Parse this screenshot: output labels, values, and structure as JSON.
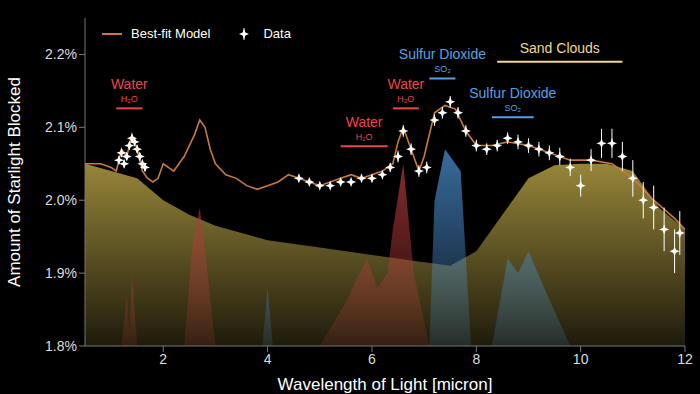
{
  "chart_data": {
    "type": "line",
    "x_label": "Wavelength of Light [micron]",
    "y_label": "Amount of Starlight Blocked",
    "xlim": [
      0.5,
      12
    ],
    "xticks": [
      2,
      4,
      6,
      8,
      10,
      12
    ],
    "ylim": [
      1.8,
      2.25
    ],
    "yticks": [
      {
        "value": 1.8,
        "label": "1.8%"
      },
      {
        "value": 1.9,
        "label": "1.9%"
      },
      {
        "value": 2.0,
        "label": "2.0%"
      },
      {
        "value": 2.1,
        "label": "2.1%"
      },
      {
        "value": 2.2,
        "label": "2.2%"
      }
    ],
    "legend": "top-left",
    "series": [
      {
        "name": "Best-fit Model",
        "type": "line",
        "color": "#c8793f",
        "x": [
          0.5,
          0.8,
          1.0,
          1.1,
          1.2,
          1.3,
          1.4,
          1.5,
          1.6,
          1.7,
          1.8,
          1.9,
          2.0,
          2.2,
          2.4,
          2.6,
          2.7,
          2.8,
          2.9,
          3.0,
          3.2,
          3.4,
          3.6,
          3.8,
          4.0,
          4.2,
          4.4,
          4.6,
          4.8,
          5.0,
          5.2,
          5.4,
          5.6,
          5.8,
          6.0,
          6.2,
          6.4,
          6.5,
          6.6,
          6.7,
          6.9,
          7.0,
          7.2,
          7.4,
          7.6,
          7.8,
          8.0,
          8.3,
          8.6,
          9.0,
          9.4,
          9.8,
          10.2,
          10.6,
          11.0,
          11.4,
          11.8,
          12.0
        ],
        "values": [
          2.05,
          2.05,
          2.045,
          2.04,
          2.07,
          2.06,
          2.09,
          2.07,
          2.04,
          2.03,
          2.025,
          2.03,
          2.05,
          2.04,
          2.06,
          2.09,
          2.11,
          2.1,
          2.07,
          2.05,
          2.035,
          2.03,
          2.02,
          2.015,
          2.02,
          2.025,
          2.035,
          2.03,
          2.025,
          2.02,
          2.025,
          2.03,
          2.035,
          2.03,
          2.035,
          2.04,
          2.05,
          2.08,
          2.1,
          2.08,
          2.04,
          2.06,
          2.12,
          2.13,
          2.125,
          2.095,
          2.075,
          2.075,
          2.08,
          2.075,
          2.065,
          2.055,
          2.055,
          2.05,
          2.03,
          2.0,
          1.975,
          1.96
        ]
      },
      {
        "name": "Data",
        "type": "scatter",
        "color": "#ffffff",
        "marker": "star",
        "x": [
          1.15,
          1.2,
          1.25,
          1.3,
          1.35,
          1.4,
          1.45,
          1.5,
          1.55,
          1.6,
          1.65,
          4.6,
          4.8,
          5.0,
          5.2,
          5.4,
          5.6,
          5.8,
          6.0,
          6.2,
          6.35,
          6.5,
          6.6,
          6.75,
          6.9,
          7.05,
          7.2,
          7.35,
          7.5,
          7.65,
          7.8,
          8.0,
          8.2,
          8.4,
          8.6,
          8.8,
          9.0,
          9.2,
          9.4,
          9.6,
          9.8,
          10.0,
          10.2,
          10.4,
          10.6,
          10.8,
          11.0,
          11.2,
          11.4,
          11.6,
          11.8,
          11.9
        ],
        "values": [
          2.055,
          2.065,
          2.05,
          2.06,
          2.075,
          2.085,
          2.08,
          2.07,
          2.06,
          2.05,
          2.045,
          2.03,
          2.025,
          2.02,
          2.02,
          2.025,
          2.025,
          2.03,
          2.03,
          2.035,
          2.045,
          2.06,
          2.095,
          2.07,
          2.04,
          2.045,
          2.11,
          2.12,
          2.135,
          2.12,
          2.095,
          2.075,
          2.07,
          2.075,
          2.085,
          2.08,
          2.075,
          2.07,
          2.065,
          2.06,
          2.045,
          2.02,
          2.055,
          2.078,
          2.078,
          2.06,
          2.03,
          2.0,
          1.99,
          1.96,
          1.93,
          1.955
        ],
        "errors": [
          0.005,
          0.005,
          0.005,
          0.005,
          0.005,
          0.005,
          0.005,
          0.005,
          0.005,
          0.005,
          0.005,
          0.004,
          0.004,
          0.004,
          0.004,
          0.004,
          0.004,
          0.004,
          0.004,
          0.004,
          0.006,
          0.008,
          0.008,
          0.008,
          0.008,
          0.008,
          0.008,
          0.008,
          0.008,
          0.008,
          0.008,
          0.008,
          0.008,
          0.008,
          0.008,
          0.01,
          0.01,
          0.01,
          0.01,
          0.012,
          0.012,
          0.015,
          0.015,
          0.02,
          0.02,
          0.02,
          0.025,
          0.025,
          0.03,
          0.03,
          0.03,
          0.03
        ]
      }
    ],
    "contributions": [
      {
        "label": "Sand Clouds",
        "color": "#c9b24c",
        "x": [
          0.5,
          1.5,
          2.0,
          2.5,
          3.0,
          3.5,
          4.0,
          5.0,
          6.0,
          7.0,
          7.5,
          8.0,
          8.5,
          9.0,
          9.5,
          10.0,
          10.5,
          11.0,
          11.5,
          12.0
        ],
        "values": [
          2.05,
          2.03,
          2.0,
          1.98,
          1.965,
          1.955,
          1.945,
          1.935,
          1.925,
          1.915,
          1.91,
          1.93,
          1.98,
          2.03,
          2.048,
          2.05,
          2.05,
          2.04,
          1.99,
          1.96
        ]
      },
      {
        "label": "Water",
        "color": "#b23a3a",
        "x": [
          0.5,
          1.2,
          1.3,
          1.35,
          1.4,
          1.5,
          2.4,
          2.55,
          2.7,
          2.8,
          3.0,
          5.0,
          5.5,
          5.9,
          6.1,
          6.3,
          6.4,
          6.6,
          6.8,
          7.1,
          12.0
        ],
        "values": [
          1.8,
          1.8,
          1.87,
          1.82,
          1.9,
          1.8,
          1.8,
          1.93,
          1.99,
          1.93,
          1.8,
          1.8,
          1.86,
          1.92,
          1.88,
          1.9,
          1.96,
          2.05,
          1.9,
          1.8,
          1.8
        ]
      },
      {
        "label": "Sulfur Dioxide",
        "color": "#4a90d0",
        "x": [
          0.5,
          3.9,
          4.0,
          4.1,
          7.1,
          7.2,
          7.4,
          7.7,
          7.9,
          8.3,
          8.6,
          8.8,
          9.0,
          9.3,
          9.8,
          12.0
        ],
        "values": [
          1.8,
          1.8,
          1.88,
          1.8,
          1.8,
          2.0,
          2.07,
          2.04,
          1.8,
          1.8,
          1.92,
          1.9,
          1.93,
          1.88,
          1.8,
          1.8
        ]
      }
    ],
    "annotations": [
      {
        "label": "Water",
        "formula": "H₂O",
        "color": "#e8474e",
        "x": [
          1.1,
          1.6
        ],
        "y": 2.126
      },
      {
        "label": "Water",
        "formula": "H₂O",
        "color": "#e8474e",
        "x": [
          5.4,
          6.3
        ],
        "y": 2.074
      },
      {
        "label": "Water",
        "formula": "H₂O",
        "color": "#e8474e",
        "x": [
          6.4,
          6.9
        ],
        "y": 2.126
      },
      {
        "label": "Sulfur Dioxide",
        "formula": "SO₂",
        "color": "#5aa0e0",
        "x": [
          7.1,
          7.6
        ],
        "y": 2.167
      },
      {
        "label": "Sulfur Dioxide",
        "formula": "SO₂",
        "color": "#5aa0e0",
        "x": [
          8.3,
          9.1
        ],
        "y": 2.114
      },
      {
        "label": "Sand Clouds",
        "color": "#f0d890",
        "x": [
          8.4,
          10.8
        ],
        "y": 2.19
      }
    ]
  }
}
